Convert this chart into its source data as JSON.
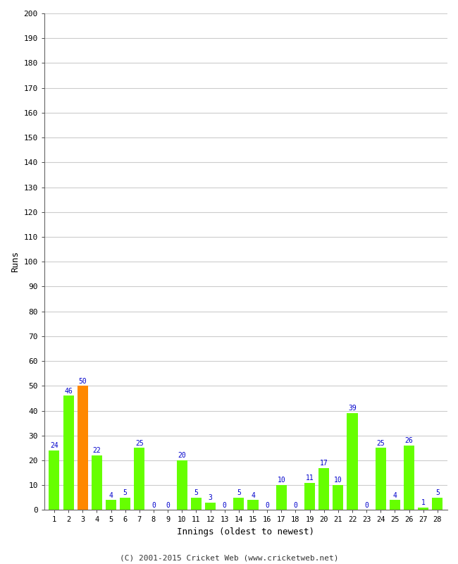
{
  "innings": [
    1,
    2,
    3,
    4,
    5,
    6,
    7,
    8,
    9,
    10,
    11,
    12,
    13,
    14,
    15,
    16,
    17,
    18,
    19,
    20,
    21,
    22,
    23,
    24,
    25,
    26,
    27,
    28
  ],
  "values": [
    24,
    46,
    50,
    22,
    4,
    5,
    25,
    0,
    0,
    20,
    5,
    3,
    0,
    5,
    4,
    0,
    10,
    0,
    11,
    17,
    10,
    39,
    0,
    25,
    4,
    26,
    1,
    5
  ],
  "bar_colors": [
    "#66ff00",
    "#66ff00",
    "#ff8800",
    "#66ff00",
    "#66ff00",
    "#66ff00",
    "#66ff00",
    "#66ff00",
    "#66ff00",
    "#66ff00",
    "#66ff00",
    "#66ff00",
    "#66ff00",
    "#66ff00",
    "#66ff00",
    "#66ff00",
    "#66ff00",
    "#66ff00",
    "#66ff00",
    "#66ff00",
    "#66ff00",
    "#66ff00",
    "#66ff00",
    "#66ff00",
    "#66ff00",
    "#66ff00",
    "#66ff00",
    "#66ff00"
  ],
  "ylabel": "Runs",
  "xlabel": "Innings (oldest to newest)",
  "ylim": [
    0,
    200
  ],
  "yticks": [
    0,
    10,
    20,
    30,
    40,
    50,
    60,
    70,
    80,
    90,
    100,
    110,
    120,
    130,
    140,
    150,
    160,
    170,
    180,
    190,
    200
  ],
  "label_color": "#0000cc",
  "background_color": "#ffffff",
  "grid_color": "#cccccc",
  "footer": "(C) 2001-2015 Cricket Web (www.cricketweb.net)",
  "fig_width": 6.5,
  "fig_height": 8.0,
  "dpi": 100
}
